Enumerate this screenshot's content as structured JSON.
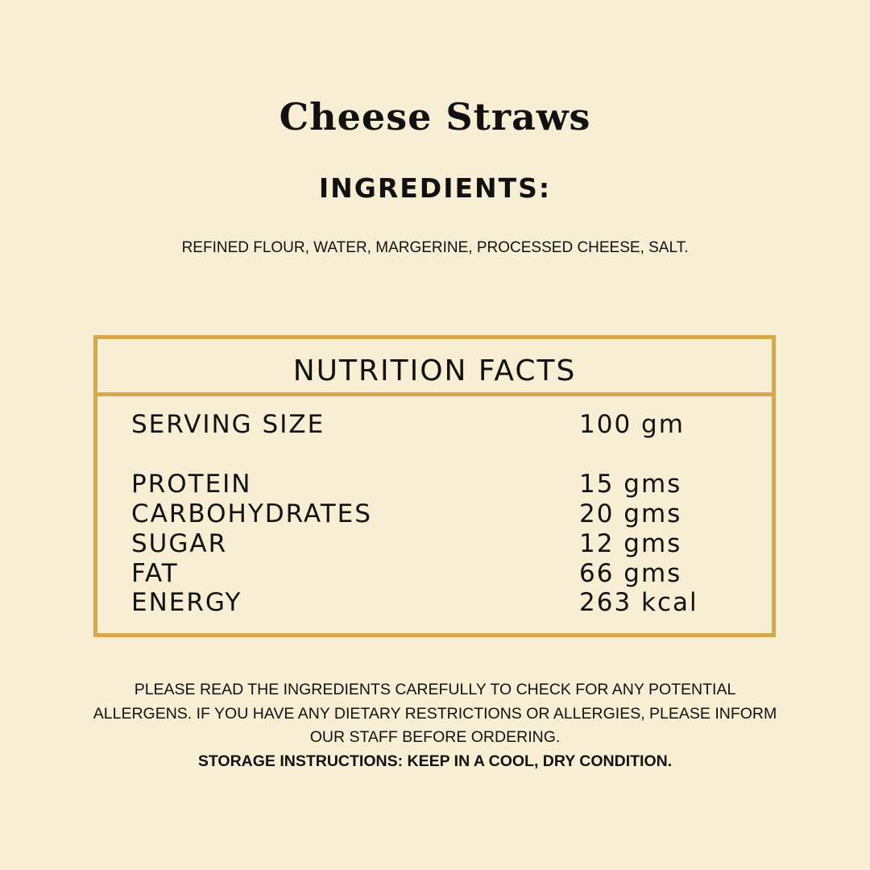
{
  "title": "Cheese Straws",
  "ingredients_heading": "INGREDIENTS:",
  "ingredients": "REFINED FLOUR, WATER, MARGERINE, PROCESSED CHEESE, SALT.",
  "nutrition": {
    "heading": "NUTRITION FACTS",
    "serving": {
      "label": "SERVING SIZE",
      "value": "100 gm"
    },
    "rows": [
      {
        "label": "PROTEIN",
        "value": "15 gms"
      },
      {
        "label": "CARBOHYDRATES",
        "value": "20 gms"
      },
      {
        "label": "SUGAR",
        "value": "12 gms"
      },
      {
        "label": "FAT",
        "value": "66 gms"
      },
      {
        "label": "ENERGY",
        "value": "263 kcal"
      }
    ]
  },
  "notice": [
    "PLEASE READ THE INGREDIENTS CAREFULLY TO CHECK FOR ANY POTENTIAL",
    "ALLERGENS. IF YOU HAVE ANY DIETARY RESTRICTIONS OR ALLERGIES, PLEASE INFORM",
    "OUR STAFF BEFORE ORDERING."
  ],
  "storage": "STORAGE INSTRUCTIONS: KEEP IN A COOL, DRY CONDITION.",
  "colors": {
    "background": "#f8eed4",
    "border": "#d4a84b"
  }
}
